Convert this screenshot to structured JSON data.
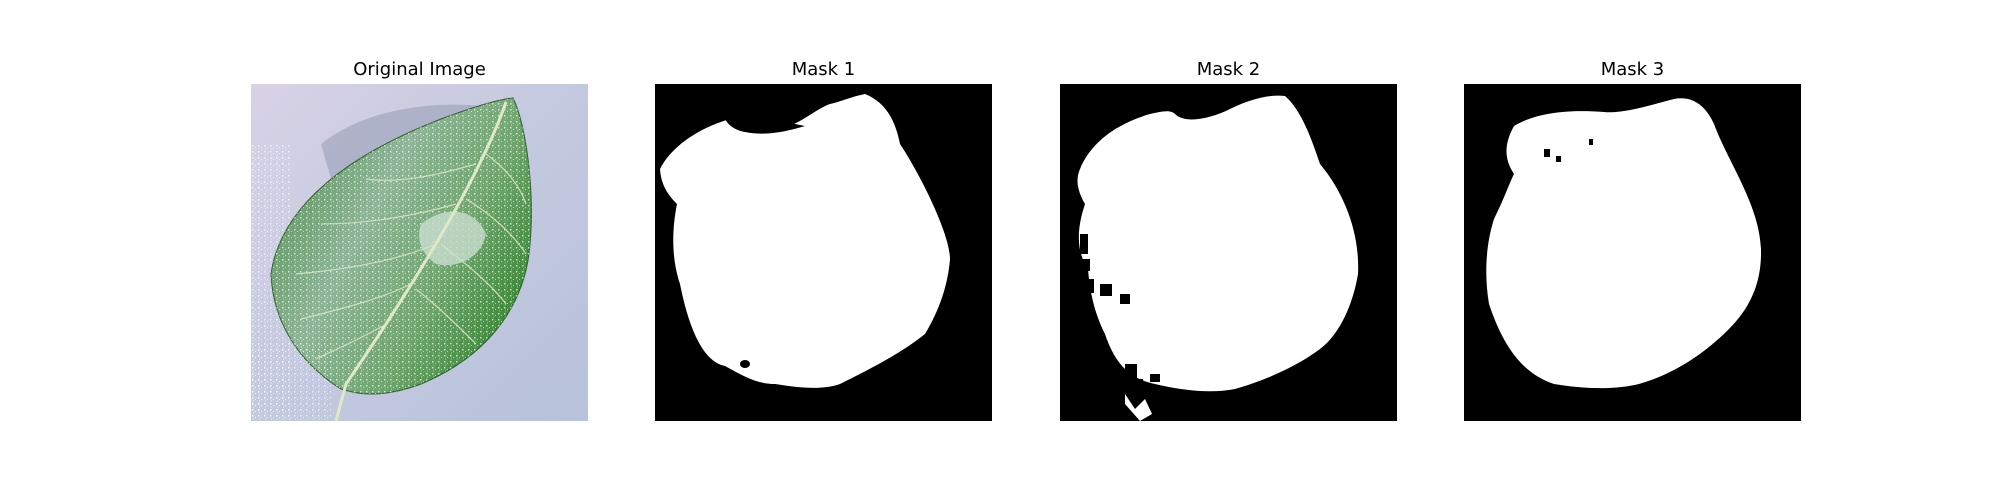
{
  "figure": {
    "panels": [
      {
        "title": "Original Image",
        "kind": "photo",
        "icon": "leaf-photo"
      },
      {
        "title": "Mask 1",
        "kind": "mask",
        "icon": "leaf-mask"
      },
      {
        "title": "Mask 2",
        "kind": "mask",
        "icon": "leaf-mask"
      },
      {
        "title": "Mask 3",
        "kind": "mask",
        "icon": "leaf-mask"
      }
    ]
  },
  "colors": {
    "mask_background": "#000000",
    "mask_foreground": "#ffffff",
    "leaf_dark": "#3f7a3a",
    "leaf_light": "#8fb996",
    "photo_background": "#c9cde0"
  }
}
